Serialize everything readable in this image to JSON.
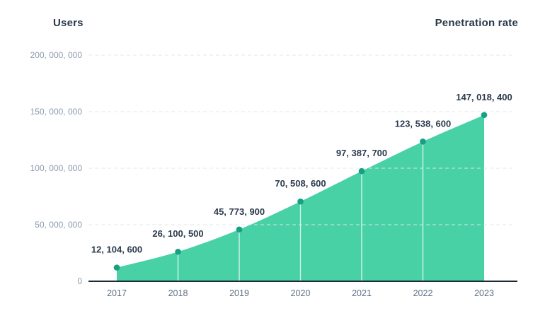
{
  "header": {
    "left_axis_title": "Users",
    "right_axis_title": "Penetration rate"
  },
  "chart_data": {
    "type": "area",
    "title": "",
    "xlabel": "",
    "ylabel_left": "Users",
    "ylabel_right": "Penetration rate",
    "categories": [
      "2017",
      "2018",
      "2019",
      "2020",
      "2021",
      "2022",
      "2023"
    ],
    "series": [
      {
        "name": "Users",
        "values": [
          12104600,
          26100500,
          45773900,
          70508600,
          97387700,
          123538600,
          147018400
        ]
      }
    ],
    "point_labels": [
      "12, 104, 600",
      "26, 100, 500",
      "45, 773, 900",
      "70, 508, 600",
      "97, 387, 700",
      "123, 538, 600",
      "147, 018, 400"
    ],
    "y_ticks": [
      {
        "value": 200000000,
        "label": "200, 000, 000"
      },
      {
        "value": 150000000,
        "label": "150, 000, 000"
      },
      {
        "value": 100000000,
        "label": "100, 000, 000"
      },
      {
        "value": 50000000,
        "label": "50, 000, 000"
      },
      {
        "value": 0,
        "label": "0"
      }
    ],
    "ylim": [
      0,
      200000000
    ],
    "grid": "dashed-horizontal",
    "legend_position": "none",
    "colors": {
      "area_fill": "#47d1a4",
      "dot": "#15a183",
      "connector": "#ffffff",
      "gridline": "#dfe6ee",
      "axis_line": "#1c2a39",
      "y_tick_text": "#8a9ab0",
      "x_tick_text": "#5d7085",
      "point_label_text": "#2b3a4c",
      "title_text": "#29394b"
    }
  }
}
